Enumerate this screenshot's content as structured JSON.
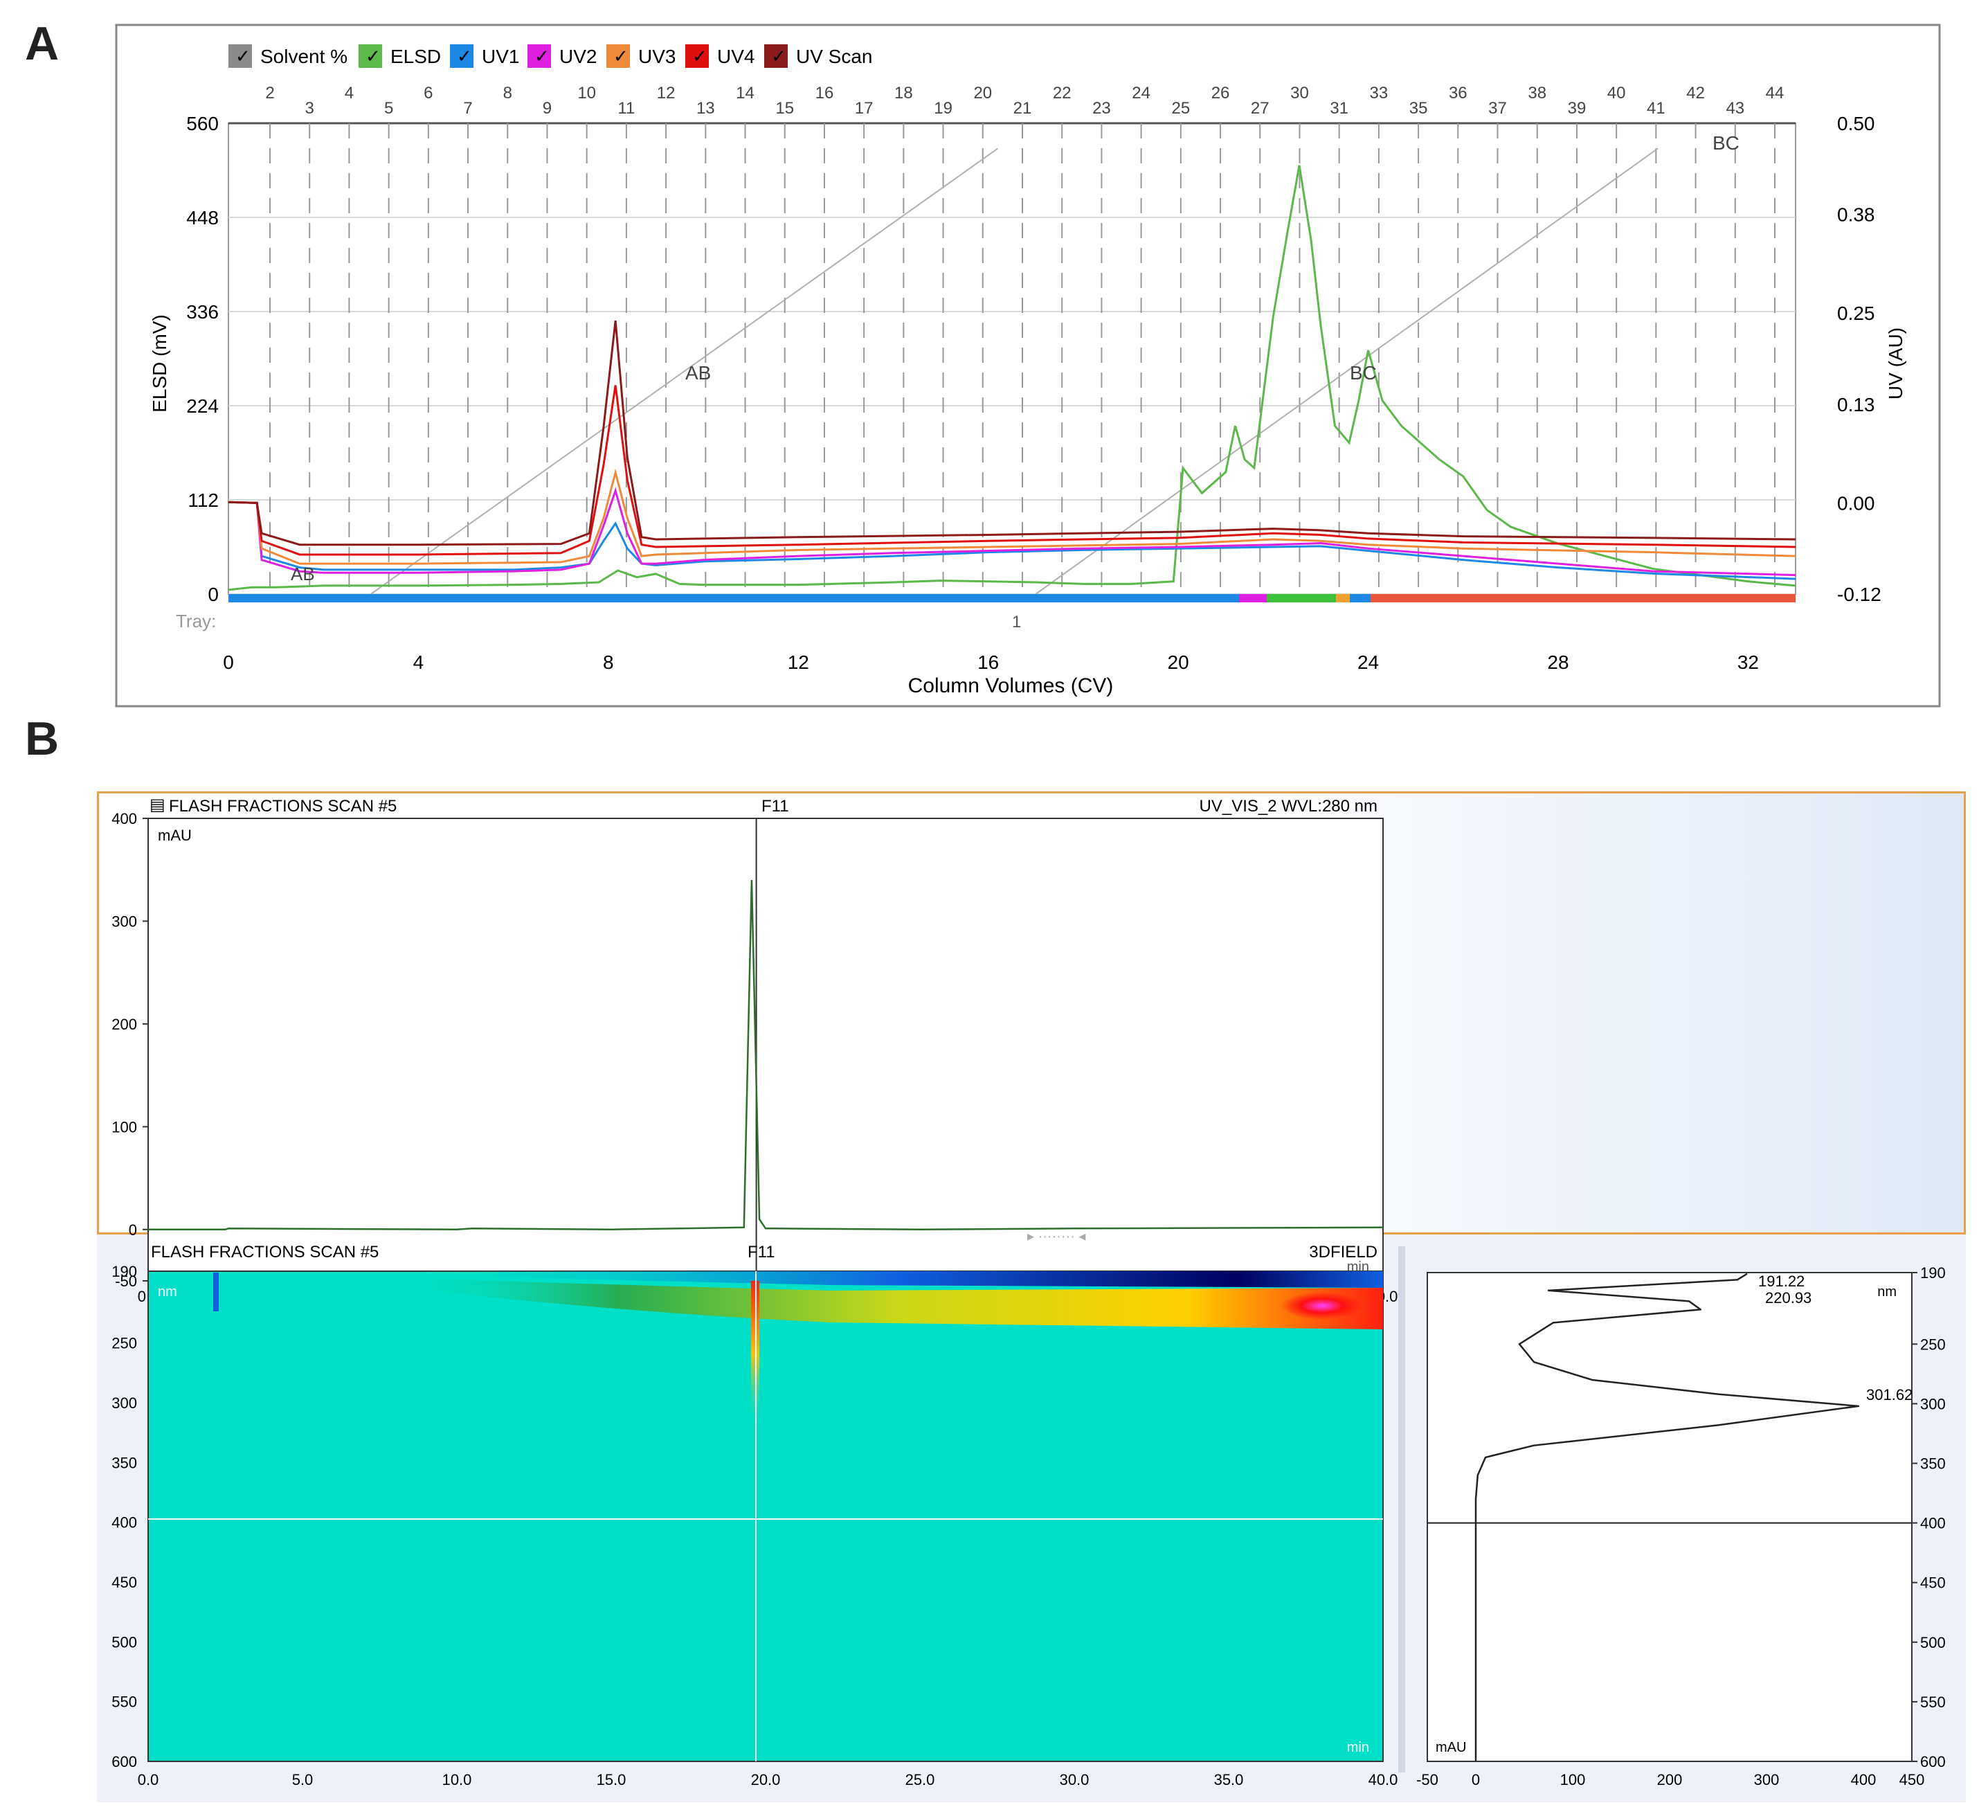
{
  "panels": {
    "a_label": "A",
    "b_label": "B"
  },
  "colors": {
    "solvent": "#8a8a8a",
    "elsd": "#5cb84a",
    "uv1": "#1e88e5",
    "uv2": "#e020e0",
    "uv3": "#f08a3a",
    "uv4": "#e01010",
    "uvscan": "#8b1a1a",
    "tray_blue": "#1e88e5",
    "tray_orange": "#e8553b",
    "tray_green": "#3cc03c",
    "panel_b_border": "#e8a04a",
    "heat_bg": "#00e0c8"
  },
  "chart_data": [
    {
      "type": "line",
      "legend": [
        "Solvent %",
        "ELSD",
        "UV1",
        "UV2",
        "UV3",
        "UV4",
        "UV Scan"
      ],
      "xlabel": "Column Volumes (CV)",
      "ylabel_left": "ELSD (mV)",
      "ylabel_right": "UV (AU)",
      "x_ticks": [
        "0",
        "4",
        "8",
        "12",
        "16",
        "20",
        "24",
        "28",
        "32"
      ],
      "xlim": [
        0,
        33
      ],
      "y_left_ticks": [
        "560",
        "448",
        "336",
        "224",
        "112",
        "0"
      ],
      "ylim_left": [
        0,
        560
      ],
      "y_right_ticks": [
        "0.50",
        "0.38",
        "0.25",
        "0.13",
        "0.00",
        "-0.12"
      ],
      "ylim_right": [
        -0.12,
        0.5
      ],
      "tray_label": "Tray:",
      "tray_number": "1",
      "fraction_numbers": [
        "2",
        "3",
        "4",
        "5",
        "6",
        "7",
        "8",
        "9",
        "10",
        "11",
        "12",
        "13",
        "14",
        "15",
        "16",
        "17",
        "18",
        "19",
        "20",
        "21",
        "22",
        "23",
        "24",
        "25",
        "26",
        "27",
        "30",
        "31",
        "33",
        "35",
        "36",
        "37",
        "38",
        "39",
        "40",
        "41",
        "42",
        "43",
        "44"
      ],
      "annotations": [
        "AB",
        "AB",
        "BC",
        "BC"
      ],
      "series": [
        {
          "name": "ELSD",
          "x": [
            0,
            0.5,
            1,
            1.5,
            2,
            4,
            6,
            7,
            7.8,
            8.2,
            8.6,
            9,
            9.5,
            10,
            12,
            14,
            15,
            16,
            17,
            18,
            19,
            19.9,
            20.1,
            20.5,
            21,
            21.2,
            21.4,
            21.6,
            21.8,
            22.0,
            22.3,
            22.55,
            22.8,
            23.0,
            23.3,
            23.6,
            23.8,
            24.0,
            24.3,
            24.7,
            25,
            25.5,
            26,
            26.5,
            27,
            28,
            30,
            32,
            33
          ],
          "y": [
            5,
            8,
            8,
            9,
            10,
            10,
            11,
            12,
            14,
            28,
            20,
            24,
            12,
            11,
            11,
            14,
            16,
            15,
            14,
            12,
            12,
            15,
            150,
            120,
            145,
            200,
            160,
            150,
            240,
            330,
            430,
            510,
            420,
            320,
            200,
            180,
            230,
            290,
            230,
            200,
            185,
            160,
            140,
            100,
            80,
            60,
            30,
            15,
            10
          ]
        },
        {
          "name": "UV1",
          "x": [
            0,
            0.6,
            0.7,
            1.5,
            2,
            3,
            4,
            6,
            7,
            7.6,
            7.9,
            8.15,
            8.4,
            8.7,
            9,
            10,
            12,
            14,
            16,
            18,
            20,
            22,
            23,
            24,
            26,
            28,
            30,
            33
          ],
          "y": [
            0.001,
            0.0,
            -0.07,
            -0.085,
            -0.088,
            -0.088,
            -0.088,
            -0.088,
            -0.085,
            -0.08,
            -0.05,
            -0.027,
            -0.06,
            -0.08,
            -0.082,
            -0.077,
            -0.074,
            -0.07,
            -0.065,
            -0.062,
            -0.06,
            -0.058,
            -0.057,
            -0.063,
            -0.075,
            -0.085,
            -0.093,
            -0.1
          ]
        },
        {
          "name": "UV2",
          "x": [
            0,
            0.6,
            0.7,
            1.5,
            2,
            4,
            6,
            7,
            7.6,
            7.9,
            8.15,
            8.4,
            8.7,
            9,
            10,
            12,
            14,
            16,
            18,
            20,
            22,
            23,
            24,
            26,
            28,
            30,
            33
          ],
          "y": [
            0.001,
            0.0,
            -0.075,
            -0.09,
            -0.092,
            -0.092,
            -0.09,
            -0.088,
            -0.08,
            -0.03,
            0.016,
            -0.04,
            -0.08,
            -0.08,
            -0.075,
            -0.07,
            -0.066,
            -0.063,
            -0.06,
            -0.058,
            -0.055,
            -0.053,
            -0.06,
            -0.07,
            -0.08,
            -0.09,
            -0.095
          ]
        },
        {
          "name": "UV3",
          "x": [
            0,
            0.6,
            0.7,
            1.5,
            4,
            7,
            7.6,
            7.9,
            8.15,
            8.4,
            8.7,
            9,
            12,
            16,
            20,
            22,
            23,
            24,
            26,
            30,
            33
          ],
          "y": [
            0.001,
            0.0,
            -0.06,
            -0.08,
            -0.08,
            -0.078,
            -0.07,
            -0.02,
            0.04,
            -0.02,
            -0.07,
            -0.068,
            -0.062,
            -0.058,
            -0.054,
            -0.048,
            -0.05,
            -0.055,
            -0.06,
            -0.065,
            -0.07
          ]
        },
        {
          "name": "UV4",
          "x": [
            0,
            0.6,
            0.7,
            1.5,
            4,
            7,
            7.6,
            7.9,
            8.15,
            8.4,
            8.7,
            9,
            12,
            16,
            20,
            22,
            23,
            24,
            26,
            30,
            33
          ],
          "y": [
            0.001,
            0.0,
            -0.05,
            -0.068,
            -0.068,
            -0.066,
            -0.05,
            0.05,
            0.155,
            0.03,
            -0.055,
            -0.058,
            -0.055,
            -0.05,
            -0.046,
            -0.04,
            -0.042,
            -0.047,
            -0.052,
            -0.055,
            -0.058
          ]
        },
        {
          "name": "UV Scan",
          "x": [
            0,
            0.6,
            0.7,
            1.5,
            4,
            7,
            7.6,
            7.9,
            8.15,
            8.4,
            8.7,
            9,
            12,
            16,
            20,
            22,
            23,
            24,
            26,
            30,
            33
          ],
          "y": [
            0.001,
            0.0,
            -0.04,
            -0.055,
            -0.055,
            -0.054,
            -0.04,
            0.1,
            0.24,
            0.06,
            -0.045,
            -0.048,
            -0.045,
            -0.042,
            -0.038,
            -0.034,
            -0.036,
            -0.04,
            -0.044,
            -0.046,
            -0.048
          ]
        },
        {
          "name": "Solvent %",
          "segments": [
            {
              "x": [
                3.0,
                16.2
              ],
              "y": [
                0,
                530
              ]
            },
            {
              "x": [
                17,
                30.1
              ],
              "y": [
                0,
                530
              ]
            }
          ]
        }
      ]
    },
    {
      "type": "line",
      "header_left": "FLASH FRACTIONS SCAN #5",
      "header_center": "F11",
      "header_right": "UV_VIS_2 WVL:280 nm",
      "ylabel": "mAU",
      "xunit": "min",
      "x_ticks": [
        "0.0",
        "5.0",
        "10.0",
        "15.0",
        "20.0",
        "25.0",
        "30.0",
        "35.0",
        "40.0"
      ],
      "xlim": [
        0,
        40
      ],
      "y_ticks": [
        "400",
        "300",
        "200",
        "100",
        "0",
        "-50"
      ],
      "ylim": [
        -50,
        400
      ],
      "series": [
        {
          "name": "",
          "x": [
            0,
            2.5,
            2.6,
            10,
            10.5,
            15,
            19.3,
            19.55,
            19.8,
            20.0,
            20.3,
            25,
            30,
            40
          ],
          "y": [
            0,
            0,
            1,
            0,
            1,
            0,
            2,
            340,
            10,
            1,
            1,
            0,
            1,
            2
          ]
        }
      ],
      "marker_x": 19.7
    },
    {
      "type": "heatmap",
      "header_left": "FLASH FRACTIONS SCAN #5",
      "header_center": "F11",
      "header_right": "3DFIELD",
      "y_unit": "nm",
      "x_unit": "min",
      "x_ticks": [
        "0.0",
        "5.0",
        "10.0",
        "15.0",
        "20.0",
        "25.0",
        "30.0",
        "35.0",
        "40.0"
      ],
      "xlim": [
        0,
        40
      ],
      "y_ticks": [
        "190",
        "250",
        "300",
        "350",
        "400",
        "450",
        "500",
        "550",
        "600"
      ],
      "ylim": [
        190,
        600
      ],
      "crosshair_x": 19.7,
      "crosshair_y": 400
    },
    {
      "type": "line",
      "x_ticks": [
        "-50",
        "0",
        "100",
        "200",
        "300",
        "400",
        "450"
      ],
      "xlim": [
        -50,
        450
      ],
      "xunit": "mAU",
      "y_ticks": [
        "190",
        "250",
        "300",
        "350",
        "400",
        "450",
        "500",
        "550",
        "600"
      ],
      "ylim": [
        190,
        600
      ],
      "yunit": "nm",
      "peak_labels": [
        "191.22",
        "220.93",
        "301.62"
      ],
      "series": [
        {
          "name": "",
          "x": [
            280,
            270,
            75,
            220,
            232,
            80,
            45,
            60,
            120,
            250,
            395,
            250,
            60,
            10,
            2,
            0,
            0,
            0
          ],
          "y": [
            191,
            196,
            205,
            214,
            221,
            232,
            250,
            265,
            280,
            292,
            302,
            318,
            335,
            345,
            360,
            380,
            450,
            600
          ]
        }
      ],
      "crosshair_y": 400
    }
  ]
}
